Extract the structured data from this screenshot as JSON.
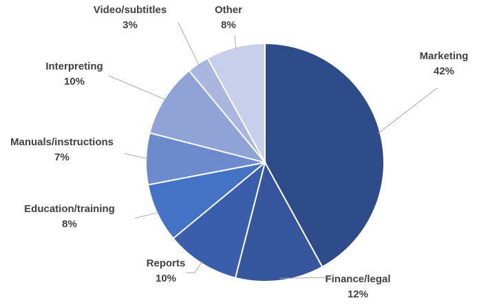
{
  "chart_data": {
    "type": "pie",
    "title": "",
    "start_angle_deg": 0,
    "direction": "clockwise",
    "legend": "none",
    "slices": [
      {
        "label": "Marketing",
        "value": 42,
        "value_label": "42%",
        "color": "#2e4c8a"
      },
      {
        "label": "Finance/legal",
        "value": 12,
        "value_label": "12%",
        "color": "#35559c"
      },
      {
        "label": "Reports",
        "value": 10,
        "value_label": "10%",
        "color": "#3a5eab"
      },
      {
        "label": "Education/training",
        "value": 8,
        "value_label": "8%",
        "color": "#4472c4"
      },
      {
        "label": "Manuals/instructions",
        "value": 7,
        "value_label": "7%",
        "color": "#6d8acd"
      },
      {
        "label": "Interpreting",
        "value": 10,
        "value_label": "10%",
        "color": "#8fa3d6"
      },
      {
        "label": "Video/subtitles",
        "value": 3,
        "value_label": "3%",
        "color": "#a9b7e0"
      },
      {
        "label": "Other",
        "value": 8,
        "value_label": "8%",
        "color": "#c7cfea"
      }
    ]
  }
}
